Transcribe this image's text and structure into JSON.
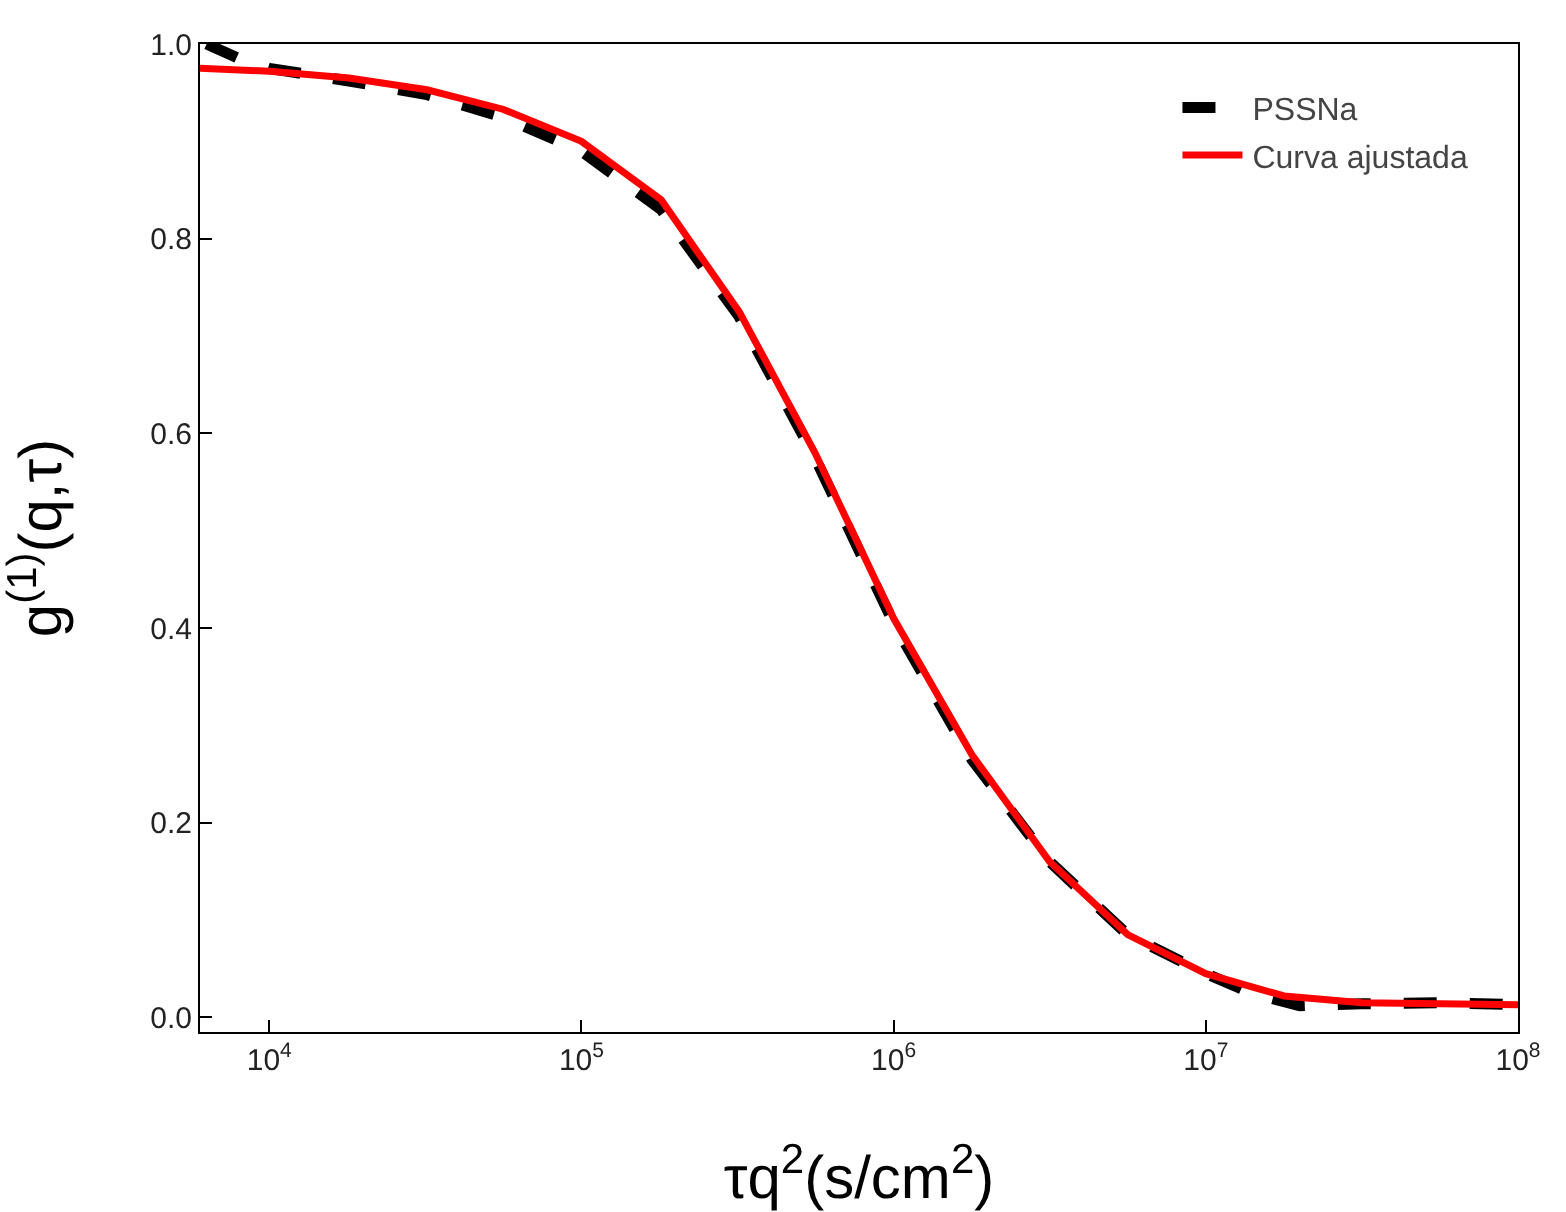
{
  "chart_data": {
    "type": "line",
    "xlabel": "τq$^{2}$(s/cm$^{2}$)",
    "ylabel": "g$^{(1)}$(q,τ)",
    "log": "x",
    "grid": false,
    "legend": "top right",
    "marker": "none",
    "xlim": [
      6000,
      100000000
    ],
    "ylim": [
      -0.015,
      1.0
    ],
    "xticks": [
      {
        "value": 10000,
        "label": "10$^{4}$"
      },
      {
        "value": 100000,
        "label": "10$^{5}$"
      },
      {
        "value": 1000000,
        "label": "10$^{6}$"
      },
      {
        "value": 10000000,
        "label": "10$^{7}$"
      },
      {
        "value": 100000000,
        "label": "10$^{8}$"
      }
    ],
    "yticks": [
      {
        "value": 0,
        "label": "0.0"
      },
      {
        "value": 0.2,
        "label": "0.2"
      },
      {
        "value": 0.4,
        "label": "0.4"
      },
      {
        "value": 0.6,
        "label": "0.6"
      },
      {
        "value": 0.8,
        "label": "0.8"
      },
      {
        "value": 1,
        "label": "1.0"
      }
    ],
    "series": [
      {
        "name": "PSSNa",
        "color": "#000000",
        "line_style": "dashed",
        "x": [
          6300,
          8000,
          10000,
          18000,
          32000,
          56000,
          100000,
          180000,
          320000,
          560000,
          1000000,
          1780000,
          3160000,
          5620000,
          10000000,
          14000000,
          20000000,
          31600000,
          56200000,
          100000000
        ],
        "values": [
          1.0,
          0.985,
          0.975,
          0.962,
          0.948,
          0.925,
          0.89,
          0.83,
          0.72,
          0.575,
          0.405,
          0.265,
          0.16,
          0.085,
          0.045,
          0.025,
          0.012,
          0.014,
          0.015,
          0.013
        ]
      },
      {
        "name": "Curva ajustada",
        "color": "#ff0000",
        "line_style": "solid",
        "x": [
          6000,
          10000,
          18000,
          32000,
          56000,
          100000,
          180000,
          320000,
          560000,
          1000000,
          1780000,
          3160000,
          5620000,
          10000000,
          17800000,
          31600000,
          56200000,
          100000000
        ],
        "values": [
          0.975,
          0.972,
          0.965,
          0.953,
          0.933,
          0.9,
          0.84,
          0.725,
          0.58,
          0.41,
          0.27,
          0.16,
          0.085,
          0.045,
          0.022,
          0.015,
          0.014,
          0.013
        ]
      }
    ]
  }
}
